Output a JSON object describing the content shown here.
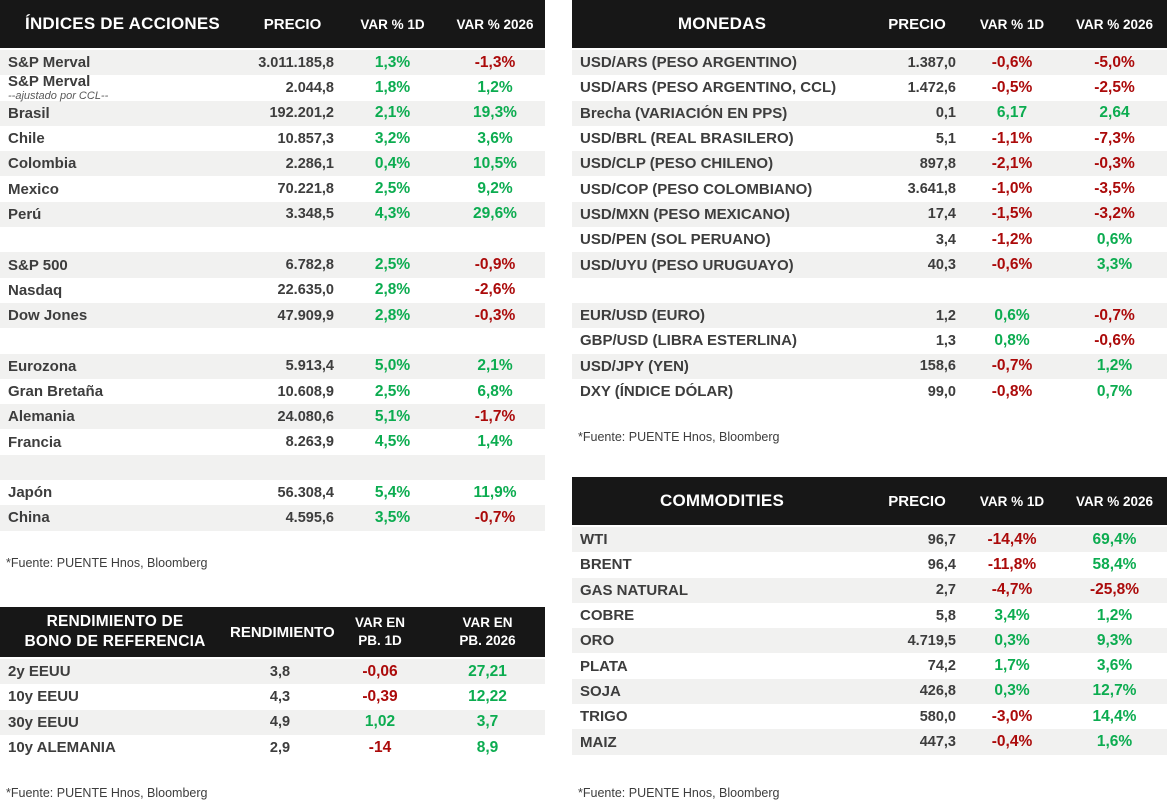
{
  "colors": {
    "positive": "#0CAC50",
    "negative": "#AB0A0A",
    "header_bg": "#171717",
    "header_text": "#FFFFFF",
    "stripe": "#F1F1F0",
    "body_text": "#3D3D3D"
  },
  "source_note": "*Fuente: PUENTE Hnos, Bloomberg",
  "tables": {
    "indices": {
      "title": "ÍNDICES DE ACCIONES",
      "columns": [
        "PRECIO",
        "VAR % 1D",
        "VAR % 2026"
      ],
      "rows": [
        {
          "label": "S&P Merval",
          "price": "3.011.185,8",
          "v1": "1,3%",
          "v2": "-1,3%"
        },
        {
          "label": "S&P Merval",
          "note": "--ajustado por CCL--",
          "price": "2.044,8",
          "v1": "1,8%",
          "v2": "1,2%"
        },
        {
          "label": "Brasil",
          "price": "192.201,2",
          "v1": "2,1%",
          "v2": "19,3%"
        },
        {
          "label": "Chile",
          "price": "10.857,3",
          "v1": "3,2%",
          "v2": "3,6%"
        },
        {
          "label": "Colombia",
          "price": "2.286,1",
          "v1": "0,4%",
          "v2": "10,5%"
        },
        {
          "label": "Mexico",
          "price": "70.221,8",
          "v1": "2,5%",
          "v2": "9,2%"
        },
        {
          "label": "Perú",
          "price": "3.348,5",
          "v1": "4,3%",
          "v2": "29,6%"
        },
        {
          "blank": true
        },
        {
          "label": "S&P 500",
          "price": "6.782,8",
          "v1": "2,5%",
          "v2": "-0,9%"
        },
        {
          "label": "Nasdaq",
          "price": "22.635,0",
          "v1": "2,8%",
          "v2": "-2,6%"
        },
        {
          "label": "Dow Jones",
          "price": "47.909,9",
          "v1": "2,8%",
          "v2": "-0,3%"
        },
        {
          "blank": true
        },
        {
          "label": "Eurozona",
          "price": "5.913,4",
          "v1": "5,0%",
          "v2": "2,1%"
        },
        {
          "label": "Gran Bretaña",
          "price": "10.608,9",
          "v1": "2,5%",
          "v2": "6,8%"
        },
        {
          "label": "Alemania",
          "price": "24.080,6",
          "v1": "5,1%",
          "v2": "-1,7%"
        },
        {
          "label": "Francia",
          "price": "8.263,9",
          "v1": "4,5%",
          "v2": "1,4%"
        },
        {
          "blank": true
        },
        {
          "label": "Japón",
          "price": "56.308,4",
          "v1": "5,4%",
          "v2": "11,9%"
        },
        {
          "label": "China",
          "price": "4.595,6",
          "v1": "3,5%",
          "v2": "-0,7%"
        }
      ]
    },
    "monedas": {
      "title": "MONEDAS",
      "columns": [
        "PRECIO",
        "VAR % 1D",
        "VAR % 2026"
      ],
      "rows": [
        {
          "label": "USD/ARS (PESO ARGENTINO)",
          "price": "1.387,0",
          "v1": "-0,6%",
          "v2": "-5,0%"
        },
        {
          "label": "USD/ARS (PESO ARGENTINO, CCL)",
          "price": "1.472,6",
          "v1": "-0,5%",
          "v2": "-2,5%"
        },
        {
          "label": "Brecha (VARIACIÓN EN PPS)",
          "price": "0,1",
          "v1": "6,17",
          "v2": "2,64"
        },
        {
          "label": "USD/BRL (REAL BRASILERO)",
          "price": "5,1",
          "v1": "-1,1%",
          "v2": "-7,3%"
        },
        {
          "label": "USD/CLP (PESO CHILENO)",
          "price": "897,8",
          "v1": "-2,1%",
          "v2": "-0,3%"
        },
        {
          "label": "USD/COP (PESO COLOMBIANO)",
          "price": "3.641,8",
          "v1": "-1,0%",
          "v2": "-3,5%"
        },
        {
          "label": "USD/MXN (PESO MEXICANO)",
          "price": "17,4",
          "v1": "-1,5%",
          "v2": "-3,2%"
        },
        {
          "label": "USD/PEN (SOL PERUANO)",
          "price": "3,4",
          "v1": "-1,2%",
          "v2": "0,6%"
        },
        {
          "label": "USD/UYU (PESO URUGUAYO)",
          "price": "40,3",
          "v1": "-0,6%",
          "v2": "3,3%"
        },
        {
          "blank": true
        },
        {
          "label": "EUR/USD (EURO)",
          "price": "1,2",
          "v1": "0,6%",
          "v2": "-0,7%"
        },
        {
          "label": "GBP/USD (LIBRA ESTERLINA)",
          "price": "1,3",
          "v1": "0,8%",
          "v2": "-0,6%"
        },
        {
          "label": "USD/JPY (YEN)",
          "price": "158,6",
          "v1": "-0,7%",
          "v2": "1,2%"
        },
        {
          "label": "DXY (ÍNDICE DÓLAR)",
          "price": "99,0",
          "v1": "-0,8%",
          "v2": "0,7%"
        }
      ]
    },
    "bonos": {
      "title": "RENDIMIENTO DE\nBONO DE REFERENCIA",
      "columns": [
        "RENDIMIENTO",
        "VAR EN\nPB. 1D",
        "VAR EN\nPB. 2026"
      ],
      "rows": [
        {
          "label": "2y EEUU",
          "price": "3,8",
          "v1": "-0,06",
          "v2": "27,21"
        },
        {
          "label": "10y EEUU",
          "price": "4,3",
          "v1": "-0,39",
          "v2": "12,22"
        },
        {
          "label": "30y EEUU",
          "price": "4,9",
          "v1": "1,02",
          "v2": "3,7"
        },
        {
          "label": "10y ALEMANIA",
          "price": "2,9",
          "v1": "-14",
          "v2": "8,9"
        }
      ]
    },
    "commodities": {
      "title": "COMMODITIES",
      "columns": [
        "PRECIO",
        "VAR % 1D",
        "VAR % 2026"
      ],
      "rows": [
        {
          "label": "WTI",
          "price": "96,7",
          "v1": "-14,4%",
          "v2": "69,4%"
        },
        {
          "label": "BRENT",
          "price": "96,4",
          "v1": "-11,8%",
          "v2": "58,4%"
        },
        {
          "label": "GAS NATURAL",
          "price": "2,7",
          "v1": "-4,7%",
          "v2": "-25,8%"
        },
        {
          "label": "COBRE",
          "price": "5,8",
          "v1": "3,4%",
          "v2": "1,2%"
        },
        {
          "label": "ORO",
          "price": "4.719,5",
          "v1": "0,3%",
          "v2": "9,3%"
        },
        {
          "label": "PLATA",
          "price": "74,2",
          "v1": "1,7%",
          "v2": "3,6%"
        },
        {
          "label": "SOJA",
          "price": "426,8",
          "v1": "0,3%",
          "v2": "12,7%"
        },
        {
          "label": "TRIGO",
          "price": "580,0",
          "v1": "-3,0%",
          "v2": "14,4%"
        },
        {
          "label": "MAIZ",
          "price": "447,3",
          "v1": "-0,4%",
          "v2": "1,6%"
        }
      ]
    }
  }
}
